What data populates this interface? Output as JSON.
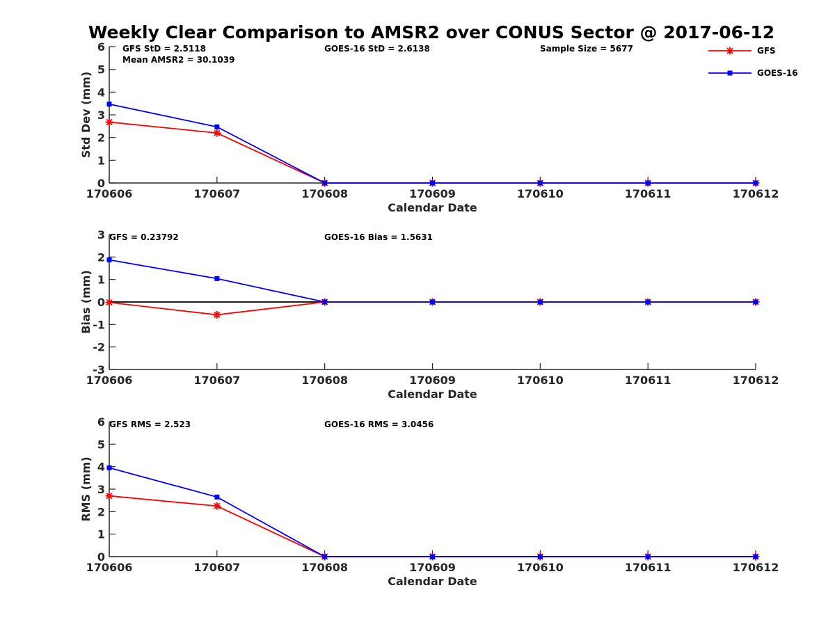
{
  "title": "Weekly Clear Comparison to AMSR2 over CONUS Sector @ 2017-06-12",
  "legend": {
    "placement": "top-right",
    "entries": [
      {
        "name": "GFS",
        "color": "#ff0000",
        "marker": "asterisk"
      },
      {
        "name": "GOES-16",
        "color": "#0000ff",
        "marker": "square"
      }
    ]
  },
  "chart_data": [
    {
      "type": "line",
      "xlabel": "Calendar Date",
      "ylabel": "Std Dev (mm)",
      "categories": [
        "170606",
        "170607",
        "170608",
        "170609",
        "170610",
        "170611",
        "170612"
      ],
      "ylim": [
        0,
        6
      ],
      "yticks": [
        0,
        1,
        2,
        3,
        4,
        5,
        6
      ],
      "grid": false,
      "zero_line": false,
      "annotations": [
        "GFS StD = 2.5118",
        "Mean AMSR2 = 30.1039",
        "GOES-16 StD = 2.6138",
        "Sample Size = 5677"
      ],
      "series": [
        {
          "name": "GFS",
          "color": "#ff0000",
          "marker": "asterisk",
          "values": [
            2.68,
            2.2,
            0,
            0,
            0,
            0,
            0
          ]
        },
        {
          "name": "GOES-16",
          "color": "#0000ff",
          "marker": "square",
          "values": [
            3.47,
            2.47,
            0,
            0,
            0,
            0,
            0
          ]
        }
      ]
    },
    {
      "type": "line",
      "xlabel": "Calendar Date",
      "ylabel": "Bias (mm)",
      "categories": [
        "170606",
        "170607",
        "170608",
        "170609",
        "170610",
        "170611",
        "170612"
      ],
      "ylim": [
        -3,
        3
      ],
      "yticks": [
        -3,
        -2,
        -1,
        0,
        1,
        2,
        3
      ],
      "grid": false,
      "zero_line": true,
      "annotations": [
        "GFS = 0.23792",
        "GOES-16 Bias  = 1.5631"
      ],
      "series": [
        {
          "name": "GFS",
          "color": "#ff0000",
          "marker": "asterisk",
          "values": [
            -0.02,
            -0.57,
            0,
            0,
            0,
            0,
            0
          ]
        },
        {
          "name": "GOES-16",
          "color": "#0000ff",
          "marker": "square",
          "values": [
            1.87,
            1.04,
            0,
            0,
            0,
            0,
            0
          ]
        }
      ]
    },
    {
      "type": "line",
      "xlabel": "Calendar Date",
      "ylabel": "RMS (mm)",
      "categories": [
        "170606",
        "170607",
        "170608",
        "170609",
        "170610",
        "170611",
        "170612"
      ],
      "ylim": [
        0,
        6
      ],
      "yticks": [
        0,
        1,
        2,
        3,
        4,
        5,
        6
      ],
      "grid": false,
      "zero_line": false,
      "annotations": [
        "GFS RMS = 2.523",
        "GOES-16 RMS = 3.0456"
      ],
      "series": [
        {
          "name": "GFS",
          "color": "#ff0000",
          "marker": "asterisk",
          "values": [
            2.7,
            2.25,
            0,
            0,
            0,
            0,
            0
          ]
        },
        {
          "name": "GOES-16",
          "color": "#0000ff",
          "marker": "square",
          "values": [
            3.95,
            2.65,
            0,
            0,
            0,
            0,
            0
          ]
        }
      ]
    }
  ]
}
